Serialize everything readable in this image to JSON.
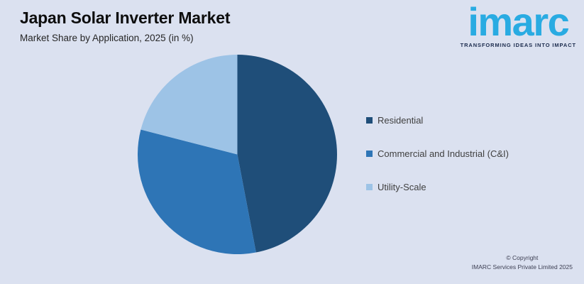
{
  "header": {
    "title": "Japan Solar Inverter Market",
    "subtitle": "Market Share by Application, 2025 (in %)"
  },
  "logo": {
    "brand": "imarc",
    "tagline": "TRANSFORMING IDEAS INTO IMPACT",
    "brand_color": "#29ABE2",
    "tagline_color": "#1B2B4D"
  },
  "chart_data": {
    "type": "pie",
    "title": "Japan Solar Inverter Market",
    "subtitle": "Market Share by Application, 2025 (in %)",
    "unit": "percent",
    "start_angle_deg": 0,
    "direction": "clockwise",
    "legend_position": "right",
    "data_labels_shown": false,
    "values_estimated_from_arc_angles": true,
    "slices": [
      {
        "label": "Residential",
        "value": 47,
        "color": "#1F4E79"
      },
      {
        "label": "Commercial and Industrial (C&I)",
        "value": 32,
        "color": "#2E75B6"
      },
      {
        "label": "Utility-Scale",
        "value": 21,
        "color": "#9DC3E6"
      }
    ]
  },
  "footer": {
    "copyright_line1": "© Copyright",
    "copyright_line2": "IMARC Services Private Limited 2025"
  },
  "colors": {
    "background": "#DBE1F0",
    "title_text": "#0D0D0D",
    "subtitle_text": "#262626",
    "legend_text": "#3F3F3F",
    "footer_text": "#3E4054"
  }
}
